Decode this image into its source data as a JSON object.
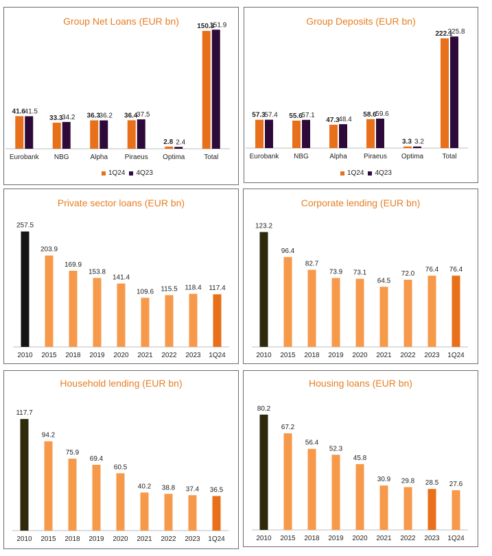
{
  "colors": {
    "accent": "#E8701A",
    "purple": "#2E0A3A",
    "dark": "#141414",
    "olive": "#2F2A0C",
    "light": "#F7994B",
    "title": "#E67E22"
  },
  "chart_data": [
    {
      "id": "net-loans",
      "type": "bar",
      "title": "Group Net Loans (EUR bn)",
      "categories": [
        "Eurobank",
        "NBG",
        "Alpha",
        "Piraeus",
        "Optima",
        "Total"
      ],
      "series": [
        {
          "name": "1Q24",
          "values": [
            41.6,
            33.3,
            36.3,
            36.4,
            2.8,
            150.3
          ],
          "labels": [
            "41.6",
            "33.3",
            "36.3",
            "36.4",
            "2.8",
            "150.3"
          ]
        },
        {
          "name": "4Q23",
          "values": [
            41.5,
            34.2,
            36.2,
            37.5,
            2.4,
            151.9
          ],
          "labels": [
            "41.5",
            "34.2",
            "36.2",
            "37.5",
            "2.4",
            "151.9"
          ]
        }
      ],
      "ylim": [
        0,
        160
      ],
      "legend": "bottom"
    },
    {
      "id": "deposits",
      "type": "bar",
      "title": "Group Deposits (EUR bn)",
      "categories": [
        "Eurobank",
        "NBG",
        "Alpha",
        "Piraeus",
        "Optima",
        "Total"
      ],
      "series": [
        {
          "name": "1Q24",
          "values": [
            57.3,
            55.6,
            47.3,
            58.6,
            3.3,
            222.1
          ],
          "labels": [
            "57.3",
            "55.6",
            "47.3",
            "58.6",
            "3.3",
            "222.1"
          ]
        },
        {
          "name": "4Q23",
          "values": [
            57.4,
            57.1,
            48.4,
            59.6,
            3.2,
            225.8
          ],
          "labels": [
            "57.4",
            "57.1",
            "48.4",
            "59.6",
            "3.2",
            "225.8"
          ]
        }
      ],
      "ylim": [
        0,
        240
      ],
      "legend": "bottom"
    },
    {
      "id": "private-sector",
      "type": "bar",
      "title": "Private sector loans (EUR bn)",
      "categories": [
        "2010",
        "2015",
        "2018",
        "2019",
        "2020",
        "2021",
        "2022",
        "2023",
        "1Q24"
      ],
      "values": [
        257.5,
        203.9,
        169.9,
        153.8,
        141.4,
        109.6,
        115.5,
        118.4,
        117.4
      ],
      "labels": [
        "257.5",
        "203.9",
        "169.9",
        "153.8",
        "141.4",
        "109.6",
        "115.5",
        "118.4",
        "117.4"
      ],
      "ylim": [
        0,
        260
      ]
    },
    {
      "id": "corporate",
      "type": "bar",
      "title": "Corporate lending (EUR bn)",
      "categories": [
        "2010",
        "2015",
        "2018",
        "2019",
        "2020",
        "2021",
        "2022",
        "2023",
        "1Q24"
      ],
      "values": [
        123.2,
        96.4,
        82.7,
        73.9,
        73.1,
        64.5,
        72.0,
        76.4,
        76.4
      ],
      "labels": [
        "123.2",
        "96.4",
        "82.7",
        "73.9",
        "73.1",
        "64.5",
        "72.0",
        "76.4",
        "76.4"
      ],
      "ylim": [
        0,
        125
      ]
    },
    {
      "id": "household",
      "type": "bar",
      "title": "Household lending (EUR bn)",
      "categories": [
        "2010",
        "2015",
        "2018",
        "2019",
        "2020",
        "2021",
        "2022",
        "2023",
        "1Q24"
      ],
      "values": [
        117.7,
        94.2,
        75.9,
        69.4,
        60.5,
        40.2,
        38.8,
        37.4,
        36.5
      ],
      "labels": [
        "117.7",
        "94.2",
        "75.9",
        "69.4",
        "60.5",
        "40.2",
        "38.8",
        "37.4",
        "36.5"
      ],
      "ylim": [
        0,
        120
      ]
    },
    {
      "id": "housing",
      "type": "bar",
      "title": "Housing loans (EUR bn)",
      "categories": [
        "2010",
        "2015",
        "2018",
        "2019",
        "2020",
        "2021",
        "2022",
        "2023",
        "1Q24"
      ],
      "values": [
        80.2,
        67.2,
        56.4,
        52.3,
        45.8,
        30.9,
        29.8,
        28.5,
        27.6
      ],
      "labels": [
        "80.2",
        "67.2",
        "56.4",
        "52.3",
        "45.8",
        "30.9",
        "29.8",
        "28.5",
        "27.6"
      ],
      "ylim": [
        0,
        82
      ]
    }
  ]
}
